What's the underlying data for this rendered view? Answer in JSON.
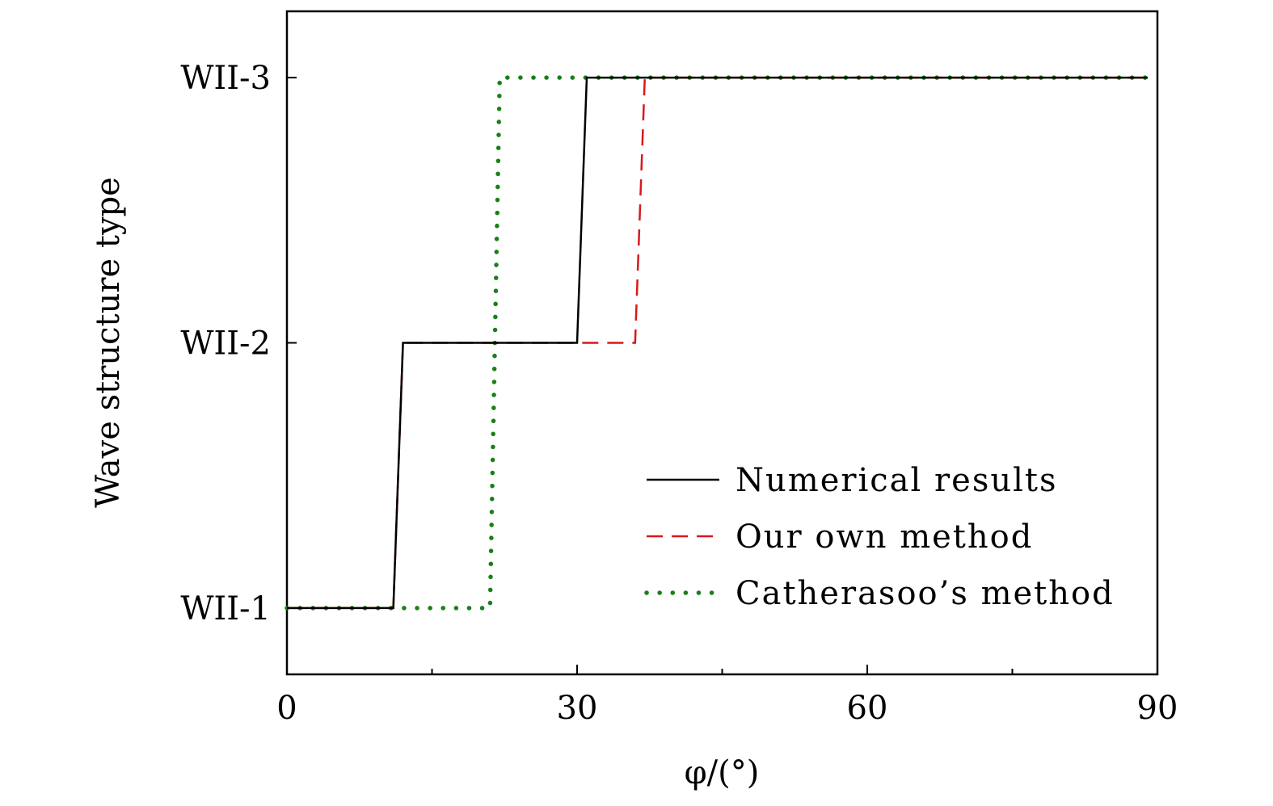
{
  "chart_data": {
    "type": "line",
    "xlabel": "φ/(°)",
    "ylabel": "Wave structure type",
    "xlim": [
      0,
      90
    ],
    "ylim": [
      0.75,
      3.25
    ],
    "x_ticks": [
      0,
      30,
      60,
      90
    ],
    "x_minor_ticks": [
      15,
      45,
      75
    ],
    "y_ticks": [
      1,
      2,
      3
    ],
    "y_tick_labels": [
      "WII-1",
      "WII-2",
      "WII-3"
    ],
    "legend_position": "lower-right",
    "grid": false,
    "series": [
      {
        "name": "Numerical results",
        "style": "solid",
        "color": "#000000",
        "x": [
          0,
          11,
          12,
          30,
          31,
          89
        ],
        "y": [
          1,
          1,
          2,
          2,
          3,
          3
        ]
      },
      {
        "name": "Our own method",
        "style": "dashed",
        "color": "#d7191c",
        "x": [
          0,
          11,
          12,
          36,
          37,
          89
        ],
        "y": [
          1,
          1,
          2,
          2,
          3,
          3
        ]
      },
      {
        "name": "Catherasoo’s method",
        "style": "dotted",
        "color": "#1a7f1a",
        "x": [
          0,
          21,
          22,
          89
        ],
        "y": [
          1,
          1,
          3,
          3
        ]
      }
    ]
  }
}
